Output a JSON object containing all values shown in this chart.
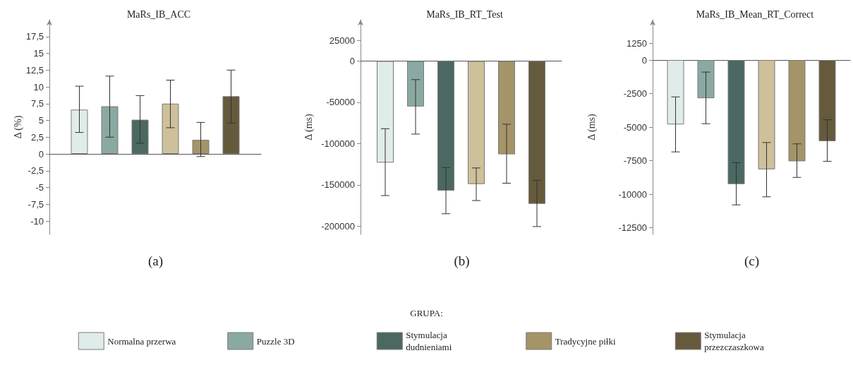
{
  "chart_data": [
    {
      "type": "bar",
      "title": "MaRs_IB_ACC",
      "ylabel": "Δ (%)",
      "categories": [
        null
      ],
      "legend": "bottom",
      "legend_title": "GRUPA:",
      "annotations": [
        "(a)"
      ],
      "ylim": [
        -12,
        20
      ],
      "yticks": [
        {
          "value": 17.5,
          "label": "17,5"
        },
        15,
        {
          "value": 12.5,
          "label": "12,5"
        },
        10,
        {
          "value": 7.5,
          "label": "7,5"
        },
        5,
        {
          "value": 2.5,
          "label": "2,5"
        },
        0,
        {
          "value": -2.5,
          "label": "-2,5"
        },
        -5,
        {
          "value": -7.5,
          "label": "-7,5"
        },
        -10
      ],
      "series": [
        {
          "name": "Normalna przerwa",
          "color": "#e0ece9",
          "values": [
            6.6
          ],
          "errors": [
            [
              3.2,
              10.1
            ]
          ]
        },
        {
          "name": "Puzzle 3D",
          "color": "#8aa9a2",
          "values": [
            7.1
          ],
          "errors": [
            [
              2.5,
              11.6
            ]
          ]
        },
        {
          "name": "Stymulacja dudnieniami",
          "color": "#4b6862",
          "values": [
            5.1
          ],
          "errors": [
            [
              1.6,
              8.7
            ]
          ]
        },
        {
          "color": "#cdc09a",
          "values": [
            7.5
          ],
          "errors": [
            [
              3.9,
              11
            ]
          ]
        },
        {
          "name": "Tradycyjne piłki",
          "color": "#a49468",
          "values": [
            2.1
          ],
          "errors": [
            [
              -0.4,
              4.7
            ]
          ]
        },
        {
          "name": "Stymulacja przezczaszkowa",
          "color": "#655a3c",
          "values": [
            8.6
          ],
          "errors": [
            [
              4.6,
              12.5
            ]
          ]
        }
      ]
    },
    {
      "type": "bar",
      "title": "MaRs_IB_RT_Test",
      "ylabel": "Δ (ms)",
      "categories": [
        null
      ],
      "annotations": [
        "(b)"
      ],
      "ylim": [
        -210000,
        50000
      ],
      "yticks": [
        25000,
        0,
        -50000,
        -100000,
        -150000,
        -200000
      ],
      "series": [
        {
          "color": "#e0ece9",
          "values": [
            -123000
          ],
          "errors": [
            [
              -163000,
              -82000
            ]
          ]
        },
        {
          "color": "#8aa9a2",
          "values": [
            -55000
          ],
          "errors": [
            [
              -88500,
              -22500
            ]
          ]
        },
        {
          "color": "#4b6862",
          "values": [
            -157000
          ],
          "errors": [
            [
              -185000,
              -129000
            ]
          ]
        },
        {
          "color": "#cdc09a",
          "values": [
            -149000
          ],
          "errors": [
            [
              -169000,
              -129500
            ]
          ]
        },
        {
          "color": "#a49468",
          "values": [
            -113000
          ],
          "errors": [
            [
              -148000,
              -76500
            ]
          ]
        },
        {
          "color": "#655a3c",
          "values": [
            -173000
          ],
          "errors": [
            [
              -200500,
              -144500
            ]
          ]
        }
      ]
    },
    {
      "type": "bar",
      "title": "MaRs_IB_Mean_RT_Correct",
      "ylabel": "Δ (ms)",
      "categories": [
        null
      ],
      "annotations": [
        "(c)"
      ],
      "ylim": [
        -13000,
        3000
      ],
      "yticks": [
        1250,
        0,
        -2500,
        -5000,
        -7500,
        -10000,
        -12500
      ],
      "series": [
        {
          "color": "#e0ece9",
          "values": [
            -4800
          ],
          "errors": [
            [
              -6850,
              -2750
            ]
          ]
        },
        {
          "color": "#8aa9a2",
          "values": [
            -2850
          ],
          "errors": [
            [
              -4750,
              -900
            ]
          ]
        },
        {
          "color": "#4b6862",
          "values": [
            -9250
          ],
          "errors": [
            [
              -10800,
              -7650
            ]
          ]
        },
        {
          "color": "#cdc09a",
          "values": [
            -8150
          ],
          "errors": [
            [
              -10200,
              -6150
            ]
          ]
        },
        {
          "color": "#a49468",
          "values": [
            -7550
          ],
          "errors": [
            [
              -8750,
              -6250
            ]
          ]
        },
        {
          "color": "#655a3c",
          "values": [
            -6050
          ],
          "errors": [
            [
              -7550,
              -4450
            ]
          ]
        }
      ]
    }
  ]
}
